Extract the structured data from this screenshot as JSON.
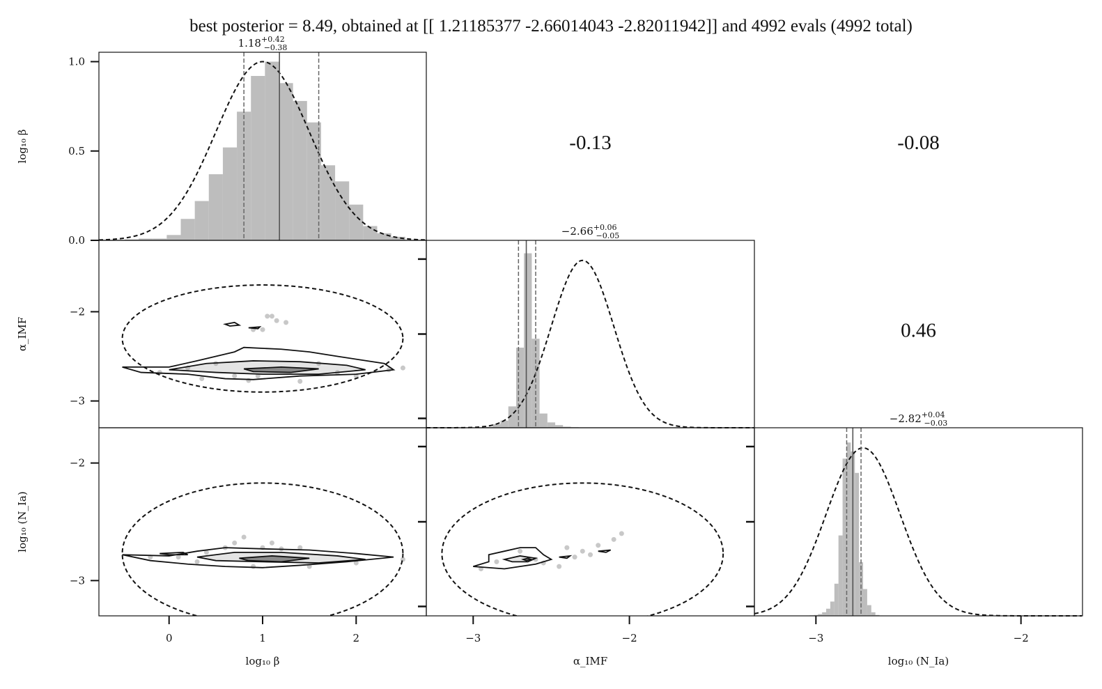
{
  "title": "best posterior = 8.49, obtained at [[ 1.21185377 -2.66014043 -2.82011942]] and 4992 evals (4992 total)",
  "chart_data": {
    "type": "corner",
    "parameters": [
      {
        "name": "log₁₀ β",
        "xlabel": "log₁₀ β",
        "ylabel": "log₁₀ β",
        "range": [
          -0.75,
          2.75
        ],
        "xticks": [
          0,
          1,
          2
        ],
        "xtick_labels": [
          "0",
          "1",
          "2"
        ]
      },
      {
        "name": "α_IMF",
        "xlabel": "α_IMF",
        "ylabel": "α_IMF",
        "range": [
          -3.3,
          -1.2
        ],
        "xticks": [
          -3,
          -2
        ],
        "xtick_labels": [
          "−3",
          "−2"
        ],
        "yticks": [
          -2,
          -3
        ],
        "ytick_labels": [
          "−2",
          "−3"
        ]
      },
      {
        "name": "log₁₀ (N_Ia)",
        "xlabel": "log₁₀ (N_Ia)",
        "ylabel": "log₁₀ (N_Ia)",
        "range": [
          -3.3,
          -1.7
        ],
        "xticks": [
          -3,
          -2
        ],
        "xtick_labels": [
          "−3",
          "−2"
        ],
        "yticks": [
          -2,
          -3
        ],
        "ytick_labels": [
          "−2",
          "−3"
        ]
      }
    ],
    "top_hist_yticks": [
      0.0,
      0.5,
      1.0
    ],
    "top_hist_ytick_labels": [
      "0.0",
      "0.5",
      "1.0"
    ],
    "marginal_stats": [
      {
        "median": "1.18",
        "plus": "+0.42",
        "minus": "−0.38",
        "median_value": 1.18,
        "q16": 0.8,
        "q84": 1.6
      },
      {
        "median": "−2.66",
        "plus": "+0.06",
        "minus": "−0.05",
        "median_value": -2.66,
        "q16": -2.71,
        "q84": -2.6
      },
      {
        "median": "−2.82",
        "plus": "+0.04",
        "minus": "−0.03",
        "median_value": -2.82,
        "q16": -2.85,
        "q84": -2.78
      }
    ],
    "correlations": [
      {
        "pair": [
          "log₁₀ β",
          "α_IMF"
        ],
        "value": "-0.13"
      },
      {
        "pair": [
          "log₁₀ β",
          "log₁₀ (N_Ia)"
        ],
        "value": "-0.08"
      },
      {
        "pair": [
          "α_IMF",
          "log₁₀ (N_Ia)"
        ],
        "value": "0.46"
      }
    ],
    "histograms": [
      {
        "bins": [
          -0.4,
          -0.25,
          -0.1,
          0.05,
          0.2,
          0.35,
          0.5,
          0.65,
          0.8,
          0.95,
          1.1,
          1.25,
          1.4,
          1.55,
          1.7,
          1.85,
          2.0,
          2.15,
          2.3,
          2.45
        ],
        "heights": [
          0.005,
          0.01,
          0.01,
          0.03,
          0.12,
          0.22,
          0.37,
          0.52,
          0.72,
          0.92,
          1.0,
          0.88,
          0.78,
          0.66,
          0.42,
          0.33,
          0.2,
          0.08,
          0.04,
          0.02
        ]
      },
      {
        "bins": [
          -3.0,
          -2.95,
          -2.9,
          -2.85,
          -2.8,
          -2.75,
          -2.7,
          -2.65,
          -2.6,
          -2.55,
          -2.5,
          -2.45,
          -2.4,
          -2.35,
          -2.3,
          -2.25,
          -2.2,
          -2.15
        ],
        "heights": [
          0.0,
          0.002,
          0.005,
          0.02,
          0.04,
          0.12,
          0.45,
          0.98,
          0.5,
          0.08,
          0.03,
          0.015,
          0.006,
          0.003,
          0.002,
          0.001,
          0.001,
          0.0
        ]
      },
      {
        "bins": [
          -3.1,
          -3.08,
          -3.06,
          -3.04,
          -3.02,
          -3.0,
          -2.98,
          -2.96,
          -2.94,
          -2.92,
          -2.9,
          -2.88,
          -2.86,
          -2.84,
          -2.82,
          -2.8,
          -2.78,
          -2.76,
          -2.74,
          -2.72,
          -2.7,
          -2.68
        ],
        "heights": [
          0.0,
          0.0,
          0.0,
          0.002,
          0.003,
          0.005,
          0.01,
          0.02,
          0.04,
          0.08,
          0.18,
          0.45,
          0.88,
          0.97,
          0.92,
          0.8,
          0.3,
          0.15,
          0.06,
          0.02,
          0.005,
          0.002
        ]
      }
    ],
    "prior_curves": [
      {
        "mean": 1.0,
        "sigma": 0.5,
        "peak": 1.0
      },
      {
        "mean": -2.3,
        "sigma": 0.2,
        "peak": 0.94
      },
      {
        "mean": -2.77,
        "sigma": 0.18,
        "peak": 0.94
      }
    ],
    "pair_panels": [
      {
        "x": 0,
        "y": 1,
        "prior_ellipse": {
          "cx": 1.0,
          "cy": -2.3,
          "rx": 1.5,
          "ry": 0.6
        },
        "scatter": [
          [
            -0.1,
            -2.68
          ],
          [
            0.2,
            -2.63
          ],
          [
            0.5,
            -2.58
          ],
          [
            0.85,
            -2.77
          ],
          [
            0.95,
            -2.72
          ],
          [
            1.05,
            -2.05
          ],
          [
            1.1,
            -2.05
          ],
          [
            1.15,
            -2.1
          ],
          [
            0.9,
            -2.2
          ],
          [
            1.0,
            -2.2
          ],
          [
            1.25,
            -2.12
          ],
          [
            1.6,
            -2.58
          ],
          [
            2.0,
            -2.72
          ],
          [
            2.35,
            -2.65
          ],
          [
            2.5,
            -2.63
          ],
          [
            0.7,
            -2.72
          ],
          [
            1.4,
            -2.78
          ],
          [
            0.35,
            -2.75
          ],
          [
            1.8,
            -2.68
          ]
        ],
        "contours": [
          [
            [
              -0.5,
              -2.62
            ],
            [
              0.0,
              -2.62
            ],
            [
              0.3,
              -2.55
            ],
            [
              0.5,
              -2.5
            ],
            [
              0.7,
              -2.45
            ],
            [
              0.8,
              -2.4
            ],
            [
              1.2,
              -2.42
            ],
            [
              1.5,
              -2.45
            ],
            [
              1.8,
              -2.5
            ],
            [
              2.3,
              -2.58
            ],
            [
              2.4,
              -2.65
            ],
            [
              2.0,
              -2.7
            ],
            [
              1.4,
              -2.72
            ],
            [
              0.9,
              -2.76
            ],
            [
              0.6,
              -2.75
            ],
            [
              0.2,
              -2.7
            ],
            [
              -0.3,
              -2.68
            ],
            [
              -0.5,
              -2.62
            ]
          ],
          [
            [
              0.0,
              -2.65
            ],
            [
              0.4,
              -2.58
            ],
            [
              0.9,
              -2.55
            ],
            [
              1.4,
              -2.56
            ],
            [
              1.9,
              -2.6
            ],
            [
              2.1,
              -2.65
            ],
            [
              1.6,
              -2.7
            ],
            [
              1.0,
              -2.7
            ],
            [
              0.5,
              -2.68
            ],
            [
              0.0,
              -2.65
            ]
          ],
          [
            [
              0.8,
              -2.64
            ],
            [
              1.2,
              -2.62
            ],
            [
              1.6,
              -2.64
            ],
            [
              1.3,
              -2.68
            ],
            [
              0.9,
              -2.67
            ],
            [
              0.8,
              -2.64
            ]
          ],
          [
            [
              0.6,
              -2.14
            ],
            [
              0.7,
              -2.12
            ],
            [
              0.75,
              -2.15
            ],
            [
              0.65,
              -2.16
            ],
            [
              0.6,
              -2.14
            ]
          ],
          [
            [
              0.85,
              -2.18
            ],
            [
              0.97,
              -2.17
            ],
            [
              0.95,
              -2.19
            ],
            [
              0.85,
              -2.18
            ]
          ]
        ]
      },
      {
        "x": 0,
        "y": 2,
        "prior_ellipse": {
          "cx": 1.0,
          "cy": -2.77,
          "rx": 1.5,
          "ry": 0.6
        },
        "scatter": [
          [
            -0.2,
            -2.8
          ],
          [
            0.1,
            -2.8
          ],
          [
            0.3,
            -2.84
          ],
          [
            0.6,
            -2.72
          ],
          [
            0.7,
            -2.68
          ],
          [
            0.8,
            -2.63
          ],
          [
            1.0,
            -2.72
          ],
          [
            1.1,
            -2.68
          ],
          [
            1.2,
            -2.73
          ],
          [
            1.4,
            -2.72
          ],
          [
            1.5,
            -2.88
          ],
          [
            2.0,
            -2.85
          ],
          [
            2.5,
            -2.82
          ],
          [
            0.9,
            -2.88
          ],
          [
            0.4,
            -2.76
          ]
        ],
        "contours": [
          [
            [
              -0.5,
              -2.78
            ],
            [
              0.0,
              -2.79
            ],
            [
              0.3,
              -2.75
            ],
            [
              0.6,
              -2.72
            ],
            [
              1.0,
              -2.73
            ],
            [
              1.5,
              -2.74
            ],
            [
              2.0,
              -2.77
            ],
            [
              2.4,
              -2.8
            ],
            [
              1.9,
              -2.84
            ],
            [
              1.4,
              -2.87
            ],
            [
              1.0,
              -2.89
            ],
            [
              0.6,
              -2.88
            ],
            [
              0.2,
              -2.86
            ],
            [
              -0.2,
              -2.83
            ],
            [
              -0.5,
              -2.78
            ]
          ],
          [
            [
              0.3,
              -2.8
            ],
            [
              0.7,
              -2.76
            ],
            [
              1.2,
              -2.76
            ],
            [
              1.8,
              -2.79
            ],
            [
              2.1,
              -2.82
            ],
            [
              1.6,
              -2.85
            ],
            [
              1.0,
              -2.84
            ],
            [
              0.5,
              -2.83
            ],
            [
              0.3,
              -2.8
            ]
          ],
          [
            [
              0.75,
              -2.81
            ],
            [
              1.1,
              -2.79
            ],
            [
              1.5,
              -2.81
            ],
            [
              1.2,
              -2.84
            ],
            [
              0.85,
              -2.83
            ],
            [
              0.75,
              -2.81
            ]
          ],
          [
            [
              -0.1,
              -2.77
            ],
            [
              0.15,
              -2.76
            ],
            [
              0.2,
              -2.78
            ],
            [
              0.0,
              -2.78
            ],
            [
              -0.1,
              -2.77
            ]
          ]
        ]
      },
      {
        "x": 1,
        "y": 2,
        "prior_ellipse": {
          "cx": -2.3,
          "cy": -2.77,
          "rx": 0.9,
          "ry": 0.6
        },
        "scatter": [
          [
            -2.95,
            -2.9
          ],
          [
            -2.85,
            -2.84
          ],
          [
            -2.7,
            -2.75
          ],
          [
            -2.6,
            -2.82
          ],
          [
            -2.55,
            -2.85
          ],
          [
            -2.45,
            -2.88
          ],
          [
            -2.4,
            -2.72
          ],
          [
            -2.35,
            -2.8
          ],
          [
            -2.3,
            -2.75
          ],
          [
            -2.25,
            -2.78
          ],
          [
            -2.2,
            -2.7
          ],
          [
            -2.1,
            -2.65
          ],
          [
            -2.05,
            -2.6
          ]
        ],
        "contours": [
          [
            [
              -3.0,
              -2.88
            ],
            [
              -2.9,
              -2.84
            ],
            [
              -2.9,
              -2.78
            ],
            [
              -2.8,
              -2.75
            ],
            [
              -2.7,
              -2.72
            ],
            [
              -2.6,
              -2.72
            ],
            [
              -2.55,
              -2.78
            ],
            [
              -2.5,
              -2.82
            ],
            [
              -2.6,
              -2.86
            ],
            [
              -2.7,
              -2.88
            ],
            [
              -2.8,
              -2.9
            ],
            [
              -3.0,
              -2.88
            ]
          ],
          [
            [
              -2.8,
              -2.82
            ],
            [
              -2.7,
              -2.79
            ],
            [
              -2.6,
              -2.81
            ],
            [
              -2.65,
              -2.84
            ],
            [
              -2.75,
              -2.84
            ],
            [
              -2.8,
              -2.82
            ]
          ],
          [
            [
              -2.68,
              -2.82
            ],
            [
              -2.65,
              -2.81
            ],
            [
              -2.63,
              -2.82
            ],
            [
              -2.66,
              -2.83
            ],
            [
              -2.68,
              -2.82
            ]
          ],
          [
            [
              -2.45,
              -2.8
            ],
            [
              -2.38,
              -2.79
            ],
            [
              -2.4,
              -2.81
            ],
            [
              -2.45,
              -2.8
            ]
          ],
          [
            [
              -2.2,
              -2.75
            ],
            [
              -2.12,
              -2.74
            ],
            [
              -2.15,
              -2.76
            ],
            [
              -2.2,
              -2.75
            ]
          ]
        ]
      }
    ]
  }
}
